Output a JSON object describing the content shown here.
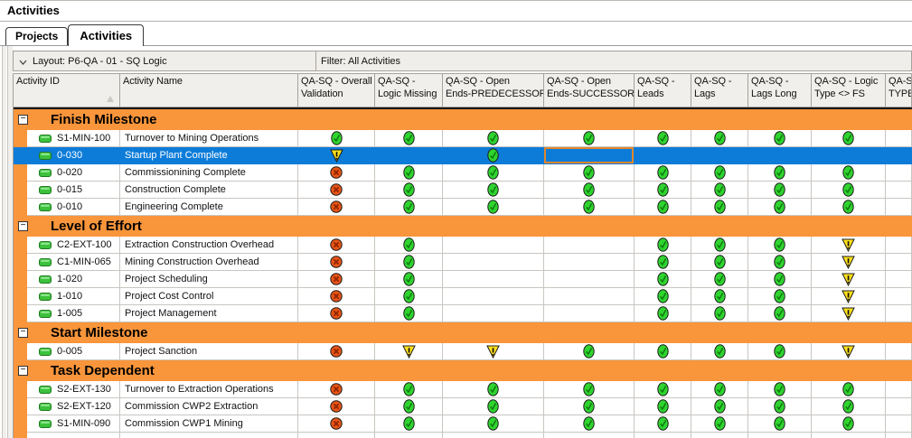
{
  "window_title": "Activities",
  "tabs": [
    {
      "label": "Projects",
      "active": false
    },
    {
      "label": "Activities",
      "active": true
    }
  ],
  "layout_bar": {
    "layout_label": "Layout: P6-QA - 01 - SQ Logic",
    "filter_label": "Filter: All Activities"
  },
  "icons": {
    "pass": "green-check-icon",
    "warn": "yellow-warning-icon",
    "fail": "red-x-icon",
    "pill": "activity-bar-icon",
    "collapse": "collapse-minus-icon",
    "chevron": "chevron-down-icon",
    "sort": "sort-ascending-icon"
  },
  "colors": {
    "group_band_orange": "#F9953B",
    "selection_blue": "#0D7CD9",
    "selected_cell_border_orange": "#E0862C",
    "pass_green": "#2FD42F",
    "warn_yellow": "#FFE11A",
    "fail_red": "#E85414",
    "header_bg": "#F1EFEC",
    "grid_line": "#C9C6C1"
  },
  "table": {
    "columns": [
      {
        "line1": "Activity ID",
        "line2": "",
        "width": 118,
        "sort_indicator": true
      },
      {
        "line1": "Activity Name",
        "line2": "",
        "width": 197
      },
      {
        "line1": "QA-SQ - Overall",
        "line2": "Validation",
        "width": 85
      },
      {
        "line1": "QA-SQ -",
        "line2": "Logic Missing",
        "width": 75
      },
      {
        "line1": "QA-SQ - Open",
        "line2": "Ends-PREDECESSOR",
        "width": 112
      },
      {
        "line1": "QA-SQ - Open",
        "line2": "Ends-SUCCESSOR",
        "width": 100
      },
      {
        "line1": "QA-SQ -",
        "line2": "Leads",
        "width": 63
      },
      {
        "line1": "QA-SQ -",
        "line2": "Lags",
        "width": 63
      },
      {
        "line1": "QA-SQ -",
        "line2": "Lags Long",
        "width": 70
      },
      {
        "line1": "QA-SQ - Logic",
        "line2": "Type <> FS",
        "width": 82
      },
      {
        "line1": "QA-SQ -",
        "line2": "TYPE",
        "width": 29
      }
    ],
    "groups": [
      {
        "name": "Finish Milestone",
        "rows": [
          {
            "id": "S1-MIN-100",
            "name": "Turnover to Mining Operations",
            "statuses": [
              "pass",
              "pass",
              "pass",
              "pass",
              "pass",
              "pass",
              "pass",
              "pass",
              ""
            ]
          },
          {
            "id": "0-030",
            "name": "Startup Plant Complete",
            "selected": true,
            "statuses": [
              "warn",
              "",
              "pass",
              "sel",
              "",
              "",
              "",
              "",
              ""
            ]
          },
          {
            "id": "0-020",
            "name": "Commissionining Complete",
            "statuses": [
              "fail",
              "pass",
              "pass",
              "pass",
              "pass",
              "pass",
              "pass",
              "pass",
              ""
            ]
          },
          {
            "id": "0-015",
            "name": "Construction Complete",
            "statuses": [
              "fail",
              "pass",
              "pass",
              "pass",
              "pass",
              "pass",
              "pass",
              "pass",
              ""
            ]
          },
          {
            "id": "0-010",
            "name": "Engineering Complete",
            "statuses": [
              "fail",
              "pass",
              "pass",
              "pass",
              "pass",
              "pass",
              "pass",
              "pass",
              ""
            ]
          }
        ]
      },
      {
        "name": "Level of Effort",
        "rows": [
          {
            "id": "C2-EXT-100",
            "name": "Extraction Construction Overhead",
            "statuses": [
              "fail",
              "pass",
              "",
              "",
              "pass",
              "pass",
              "pass",
              "warn",
              ""
            ]
          },
          {
            "id": "C1-MIN-065",
            "name": "Mining Construction Overhead",
            "statuses": [
              "fail",
              "pass",
              "",
              "",
              "pass",
              "pass",
              "pass",
              "warn",
              ""
            ]
          },
          {
            "id": "1-020",
            "name": "Project Scheduling",
            "statuses": [
              "fail",
              "pass",
              "",
              "",
              "pass",
              "pass",
              "pass",
              "warn",
              ""
            ]
          },
          {
            "id": "1-010",
            "name": "Project Cost Control",
            "statuses": [
              "fail",
              "pass",
              "",
              "",
              "pass",
              "pass",
              "pass",
              "warn",
              ""
            ]
          },
          {
            "id": "1-005",
            "name": "Project Management",
            "statuses": [
              "fail",
              "pass",
              "",
              "",
              "pass",
              "pass",
              "pass",
              "warn",
              ""
            ]
          }
        ]
      },
      {
        "name": "Start Milestone",
        "rows": [
          {
            "id": "0-005",
            "name": "Project Sanction",
            "statuses": [
              "fail",
              "warn",
              "warn",
              "pass",
              "pass",
              "pass",
              "pass",
              "warn",
              ""
            ]
          }
        ]
      },
      {
        "name": "Task Dependent",
        "rows": [
          {
            "id": "S2-EXT-130",
            "name": "Turnover to Extraction Operations",
            "statuses": [
              "fail",
              "pass",
              "pass",
              "pass",
              "pass",
              "pass",
              "pass",
              "pass",
              ""
            ]
          },
          {
            "id": "S2-EXT-120",
            "name": "Commission CWP2 Extraction",
            "statuses": [
              "fail",
              "pass",
              "pass",
              "pass",
              "pass",
              "pass",
              "pass",
              "pass",
              ""
            ]
          },
          {
            "id": "S1-MIN-090",
            "name": "Commission CWP1 Mining",
            "statuses": [
              "fail",
              "pass",
              "pass",
              "pass",
              "pass",
              "pass",
              "pass",
              "pass",
              ""
            ]
          }
        ]
      }
    ],
    "partial_empty_row": true
  }
}
